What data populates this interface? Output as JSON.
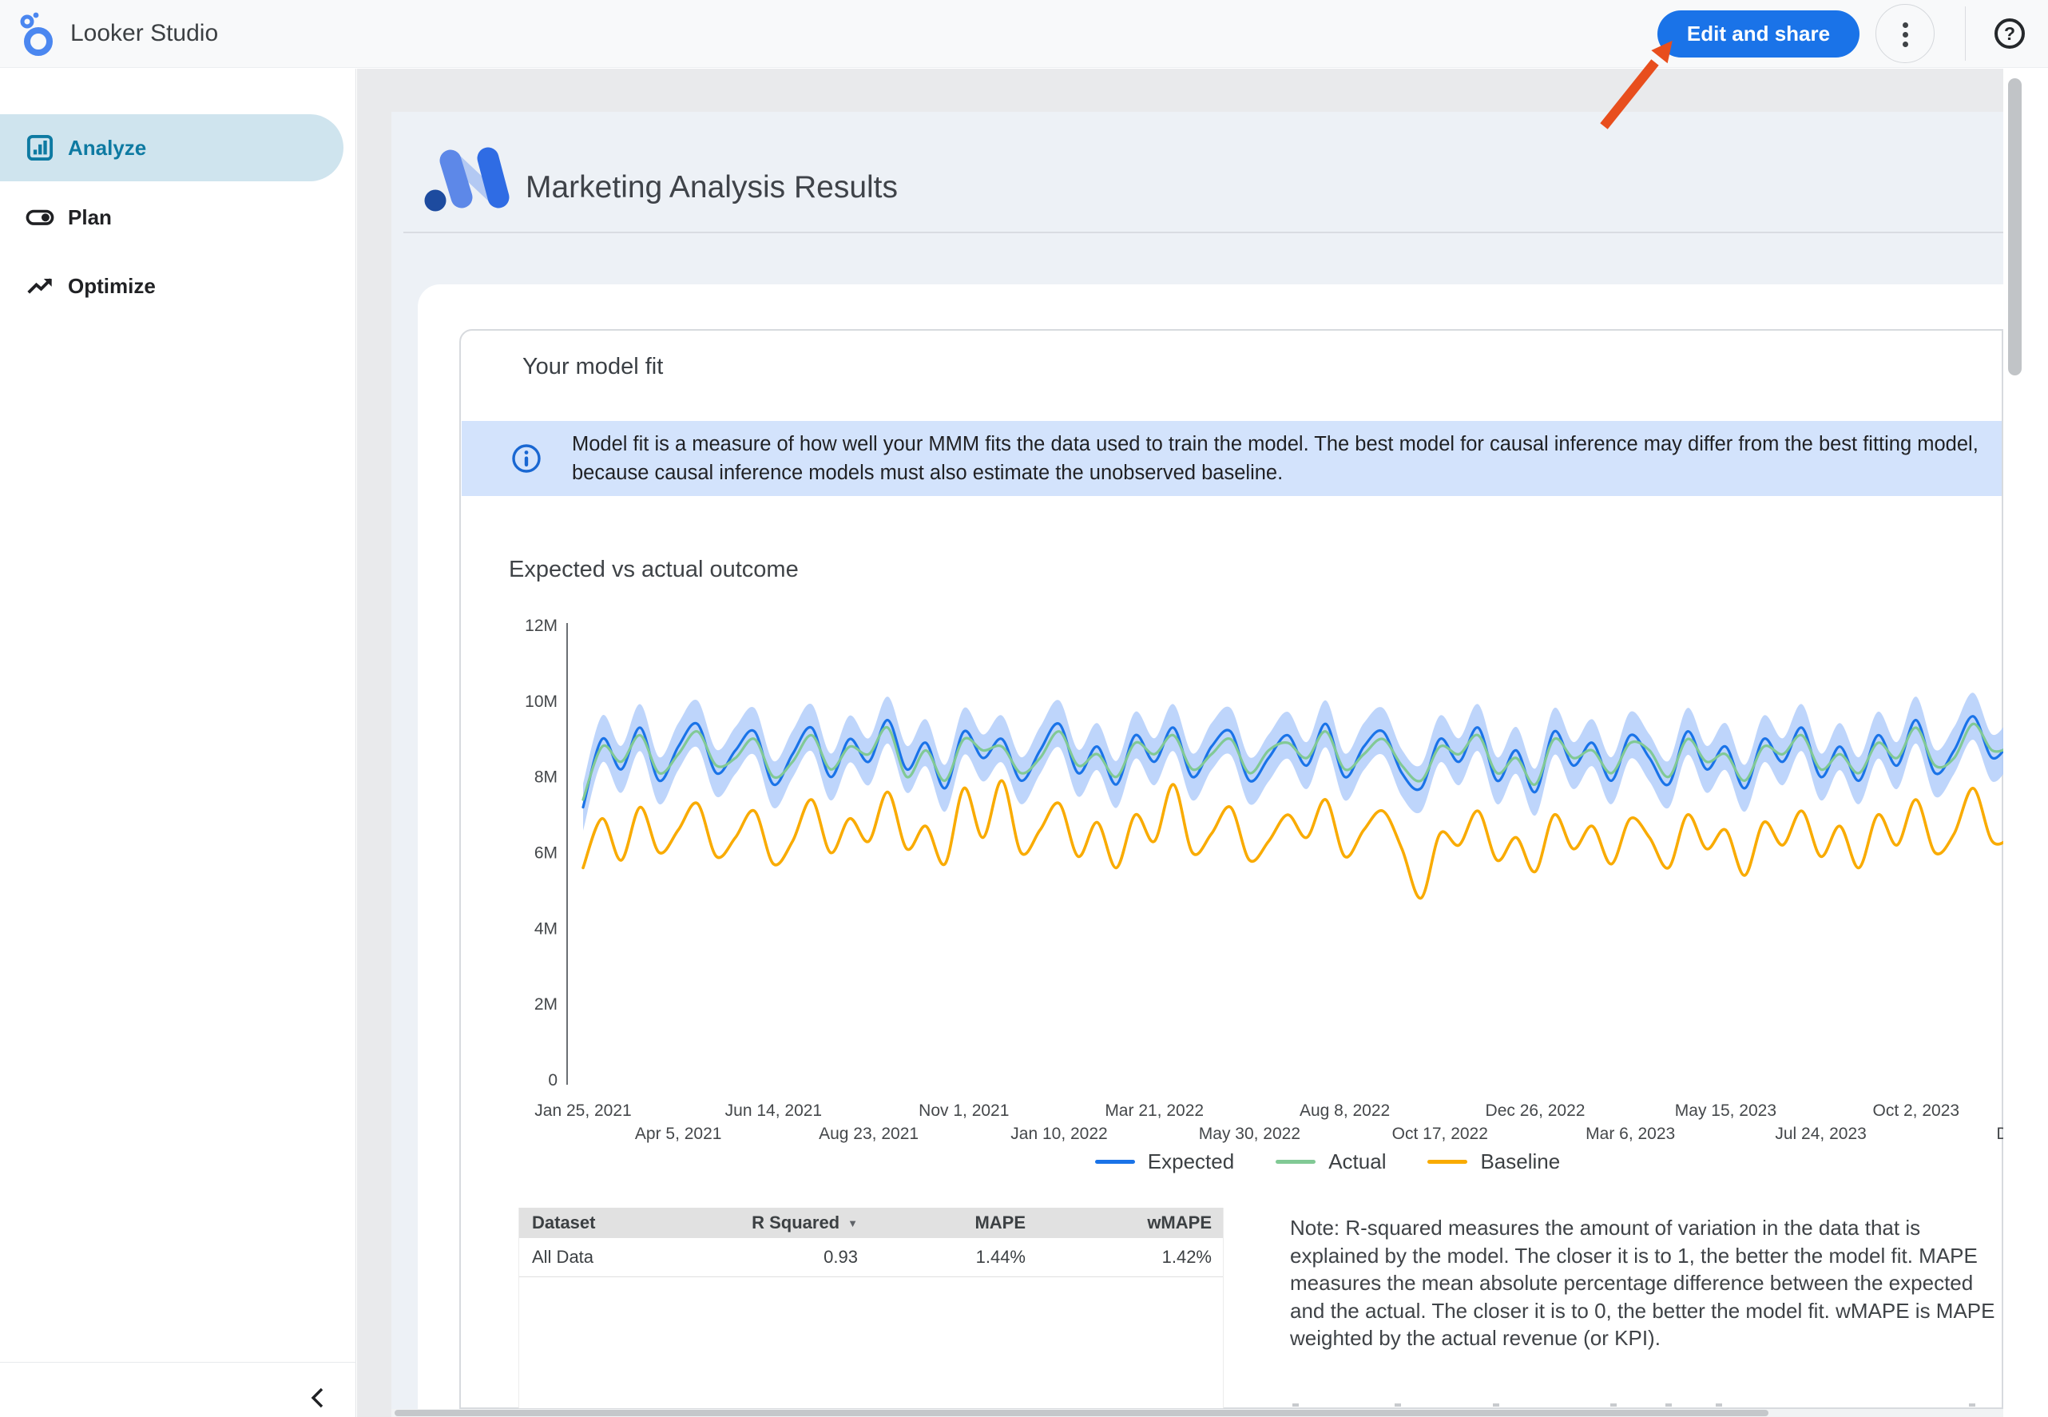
{
  "header": {
    "app_name": "Looker Studio",
    "edit_share_label": "Edit and share"
  },
  "sidebar": {
    "items": [
      {
        "label": "Analyze",
        "selected": true
      },
      {
        "label": "Plan",
        "selected": false
      },
      {
        "label": "Optimize",
        "selected": false
      }
    ]
  },
  "report": {
    "title": "Marketing Analysis Results",
    "section_title": "Your model fit",
    "info_banner": "Model fit is a measure of how well your MMM fits the data used to train the model. The best model for causal inference may differ from the best fitting model, because causal inference models must also estimate the unobserved baseline.",
    "note": "Note: R-squared measures the amount of variation in the data that is explained by the model. The closer it is to 1, the better the model fit. MAPE measures the mean absolute percentage difference between the expected and the actual. The closer it is to 0, the better the model fit. wMAPE is MAPE weighted by the actual revenue (or KPI)."
  },
  "table": {
    "headers": [
      "Dataset",
      "R Squared",
      "MAPE",
      "wMAPE"
    ],
    "sort_column": "R Squared",
    "sort_direction": "desc",
    "sort_icon": "sort-desc-arrow",
    "rows": [
      [
        "All Data",
        "0.93",
        "1.44%",
        "1.42%"
      ]
    ]
  },
  "chart_data": {
    "type": "line",
    "title": "Expected vs actual outcome",
    "x_unit": "weekly dates, Jan 25 2021 to Dec 2023",
    "ylim": [
      0,
      12000000
    ],
    "y_tick_labels": [
      "0",
      "2M",
      "4M",
      "6M",
      "8M",
      "10M",
      "12M"
    ],
    "x_tick_labels": [
      "Jan 25, 2021",
      "Apr 5, 2021",
      "Jun 14, 2021",
      "Aug 23, 2021",
      "Nov 1, 2021",
      "Jan 10, 2022",
      "Mar 21, 2022",
      "May 30, 2022",
      "Aug 8, 2022",
      "Oct 17, 2022",
      "Dec 26, 2022",
      "Mar 6, 2023",
      "May 15, 2023",
      "Jul 24, 2023",
      "Oct 2, 2023",
      "Dec"
    ],
    "legend_position": "bottom",
    "grid": false,
    "values_unit": "millions",
    "confidence_band": {
      "around_series": "Expected",
      "halfwidth": 0.62,
      "color": "#aecbfa"
    },
    "series": [
      {
        "name": "Expected",
        "color": "#1a73e8",
        "values": [
          7.2,
          9.0,
          8.2,
          9.3,
          7.9,
          8.8,
          9.4,
          8.1,
          8.7,
          9.2,
          7.8,
          8.6,
          9.3,
          8.0,
          9.0,
          8.4,
          9.5,
          8.2,
          8.9,
          7.7,
          9.2,
          8.5,
          9.0,
          7.9,
          8.7,
          9.4,
          8.1,
          8.8,
          7.8,
          9.1,
          8.4,
          9.3,
          8.0,
          8.8,
          9.2,
          7.9,
          8.5,
          9.1,
          8.3,
          9.4,
          8.0,
          8.8,
          9.2,
          8.1,
          7.7,
          9.0,
          8.4,
          9.3,
          7.9,
          8.7,
          7.6,
          9.2,
          8.3,
          8.9,
          7.9,
          9.1,
          8.5,
          7.8,
          9.2,
          8.2,
          8.8,
          7.7,
          9.0,
          8.4,
          9.3,
          8.0,
          8.8,
          7.9,
          9.1,
          8.3,
          9.5,
          8.1,
          8.7,
          9.6,
          8.5,
          9.0
        ]
      },
      {
        "name": "Actual",
        "color": "#81c995",
        "values": [
          7.4,
          8.8,
          8.4,
          9.1,
          8.1,
          8.6,
          9.2,
          8.3,
          8.5,
          9.0,
          8.0,
          8.4,
          9.1,
          8.2,
          8.8,
          8.6,
          9.3,
          8.0,
          8.7,
          7.9,
          9.0,
          8.7,
          8.8,
          8.1,
          8.5,
          9.2,
          8.3,
          8.6,
          8.0,
          8.9,
          8.6,
          9.1,
          8.2,
          8.6,
          9.0,
          8.1,
          8.7,
          8.9,
          8.5,
          9.2,
          8.2,
          8.6,
          9.0,
          8.3,
          7.9,
          8.8,
          8.6,
          9.1,
          8.1,
          8.5,
          7.8,
          9.0,
          8.5,
          8.7,
          8.1,
          8.9,
          8.7,
          8.0,
          9.0,
          8.4,
          8.6,
          7.9,
          8.8,
          8.6,
          9.1,
          8.2,
          8.6,
          8.1,
          8.9,
          8.5,
          9.3,
          8.3,
          8.5,
          9.4,
          8.7,
          8.8
        ]
      },
      {
        "name": "Baseline",
        "color": "#f9ab00",
        "values": [
          5.6,
          6.9,
          5.8,
          7.2,
          6.0,
          6.6,
          7.3,
          5.9,
          6.4,
          7.1,
          5.7,
          6.3,
          7.4,
          6.0,
          6.9,
          6.3,
          7.6,
          6.1,
          6.7,
          5.7,
          7.7,
          6.4,
          7.9,
          6.0,
          6.6,
          7.3,
          5.9,
          6.8,
          5.6,
          7.0,
          6.3,
          7.8,
          6.0,
          6.5,
          7.2,
          5.8,
          6.3,
          7.0,
          6.4,
          7.4,
          5.9,
          6.6,
          7.1,
          6.1,
          4.8,
          6.5,
          6.2,
          7.1,
          5.8,
          6.4,
          5.5,
          7.0,
          6.1,
          6.7,
          5.7,
          6.9,
          6.4,
          5.6,
          7.0,
          6.1,
          6.6,
          5.4,
          6.8,
          6.2,
          7.1,
          5.9,
          6.7,
          5.6,
          7.0,
          6.2,
          7.4,
          6.0,
          6.5,
          7.7,
          6.3,
          6.4
        ]
      }
    ]
  },
  "colors": {
    "accent_blue": "#1a73e8",
    "banner_bg": "#d3e3fc",
    "banner_icon": "#1967d2",
    "sidebar_selected": "#0e7aa2",
    "sidebar_selected_bg": "#cfe4ee",
    "annotation_arrow": "#e84e1d",
    "report_bg": "#edf1f6"
  }
}
